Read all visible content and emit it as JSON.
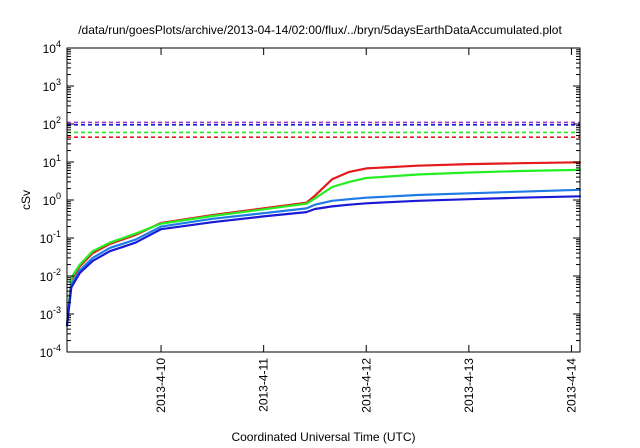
{
  "chart_data": {
    "type": "line",
    "title": "/data/run/goesPlots/archive/2013-04-14/02:00/flux/../bryn/5daysEarthDataAccumulated.plot",
    "xlabel": "Coordinated Universal Time (UTC)",
    "ylabel": "cSv",
    "yscale": "log",
    "ylim": [
      0.0001,
      10000
    ],
    "xlim": [
      "2013-04-09 02:00",
      "2013-04-14 02:00"
    ],
    "x_ticks": [
      "2013-4-10",
      "2013-4-11",
      "2013-4-12",
      "2013-4-13",
      "2013-4-14"
    ],
    "y_ticks": [
      {
        "base": "10",
        "exp": "-4",
        "value": 0.0001
      },
      {
        "base": "10",
        "exp": "-3",
        "value": 0.001
      },
      {
        "base": "10",
        "exp": "-2",
        "value": 0.01
      },
      {
        "base": "10",
        "exp": "-1",
        "value": 0.1
      },
      {
        "base": "10",
        "exp": "0",
        "value": 1
      },
      {
        "base": "10",
        "exp": "1",
        "value": 10
      },
      {
        "base": "10",
        "exp": "2",
        "value": 100
      },
      {
        "base": "10",
        "exp": "3",
        "value": 1000
      },
      {
        "base": "10",
        "exp": "4",
        "value": 10000
      }
    ],
    "grid": false,
    "legend": "none",
    "series": [
      {
        "color": "#e41a1c",
        "style": "solid",
        "points": [
          [
            "2013-04-09 02:00",
            0.0005
          ],
          [
            "2013-04-09 03:00",
            0.008
          ],
          [
            "2013-04-09 05:00",
            0.018
          ],
          [
            "2013-04-09 08:00",
            0.04
          ],
          [
            "2013-04-09 12:00",
            0.07
          ],
          [
            "2013-04-09 18:00",
            0.12
          ],
          [
            "2013-04-10 00:00",
            0.25
          ],
          [
            "2013-04-10 12:00",
            0.4
          ],
          [
            "2013-04-11 00:00",
            0.6
          ],
          [
            "2013-04-11 10:00",
            0.85
          ],
          [
            "2013-04-11 12:00",
            1.3
          ],
          [
            "2013-04-11 16:00",
            3.5
          ],
          [
            "2013-04-11 20:00",
            5.5
          ],
          [
            "2013-04-12 00:00",
            6.8
          ],
          [
            "2013-04-12 12:00",
            8.0
          ],
          [
            "2013-04-13 00:00",
            8.8
          ],
          [
            "2013-04-13 12:00",
            9.3
          ],
          [
            "2013-04-14 02:00",
            9.8
          ]
        ]
      },
      {
        "color": "#22ee22",
        "style": "solid",
        "points": [
          [
            "2013-04-09 02:00",
            0.0005
          ],
          [
            "2013-04-09 03:00",
            0.009
          ],
          [
            "2013-04-09 05:00",
            0.02
          ],
          [
            "2013-04-09 08:00",
            0.045
          ],
          [
            "2013-04-09 12:00",
            0.075
          ],
          [
            "2013-04-09 18:00",
            0.13
          ],
          [
            "2013-04-10 00:00",
            0.24
          ],
          [
            "2013-04-10 12:00",
            0.38
          ],
          [
            "2013-04-11 00:00",
            0.57
          ],
          [
            "2013-04-11 10:00",
            0.8
          ],
          [
            "2013-04-11 12:00",
            1.1
          ],
          [
            "2013-04-11 16:00",
            2.2
          ],
          [
            "2013-04-11 20:00",
            3.0
          ],
          [
            "2013-04-12 00:00",
            3.8
          ],
          [
            "2013-04-12 12:00",
            4.7
          ],
          [
            "2013-04-13 00:00",
            5.3
          ],
          [
            "2013-04-13 12:00",
            5.8
          ],
          [
            "2013-04-14 02:00",
            6.2
          ]
        ]
      },
      {
        "color": "#1e7be6",
        "style": "solid",
        "points": [
          [
            "2013-04-09 02:00",
            0.0005
          ],
          [
            "2013-04-09 03:00",
            0.006
          ],
          [
            "2013-04-09 05:00",
            0.014
          ],
          [
            "2013-04-09 08:00",
            0.03
          ],
          [
            "2013-04-09 12:00",
            0.055
          ],
          [
            "2013-04-09 18:00",
            0.09
          ],
          [
            "2013-04-10 00:00",
            0.2
          ],
          [
            "2013-04-10 12:00",
            0.32
          ],
          [
            "2013-04-11 00:00",
            0.45
          ],
          [
            "2013-04-11 10:00",
            0.6
          ],
          [
            "2013-04-11 12:00",
            0.75
          ],
          [
            "2013-04-11 16:00",
            0.95
          ],
          [
            "2013-04-11 20:00",
            1.05
          ],
          [
            "2013-04-12 00:00",
            1.15
          ],
          [
            "2013-04-12 12:00",
            1.35
          ],
          [
            "2013-04-13 00:00",
            1.5
          ],
          [
            "2013-04-13 12:00",
            1.65
          ],
          [
            "2013-04-14 02:00",
            1.85
          ]
        ]
      },
      {
        "color": "#1a1ad6",
        "style": "solid",
        "points": [
          [
            "2013-04-09 02:00",
            0.0005
          ],
          [
            "2013-04-09 03:00",
            0.005
          ],
          [
            "2013-04-09 05:00",
            0.012
          ],
          [
            "2013-04-09 08:00",
            0.025
          ],
          [
            "2013-04-09 12:00",
            0.045
          ],
          [
            "2013-04-09 18:00",
            0.075
          ],
          [
            "2013-04-10 00:00",
            0.17
          ],
          [
            "2013-04-10 12:00",
            0.26
          ],
          [
            "2013-04-11 00:00",
            0.37
          ],
          [
            "2013-04-11 10:00",
            0.48
          ],
          [
            "2013-04-11 12:00",
            0.58
          ],
          [
            "2013-04-11 16:00",
            0.68
          ],
          [
            "2013-04-11 20:00",
            0.75
          ],
          [
            "2013-04-12 00:00",
            0.82
          ],
          [
            "2013-04-12 12:00",
            0.95
          ],
          [
            "2013-04-13 00:00",
            1.05
          ],
          [
            "2013-04-13 12:00",
            1.15
          ],
          [
            "2013-04-14 02:00",
            1.25
          ]
        ]
      }
    ],
    "thresholds": [
      {
        "value": 110,
        "color": "#9932cc",
        "style": "dashed"
      },
      {
        "value": 95,
        "color": "#1a1ad6",
        "style": "dashed"
      },
      {
        "value": 60,
        "color": "#22ee22",
        "style": "dashed"
      },
      {
        "value": 45,
        "color": "#e41a1c",
        "style": "dashed"
      }
    ]
  }
}
